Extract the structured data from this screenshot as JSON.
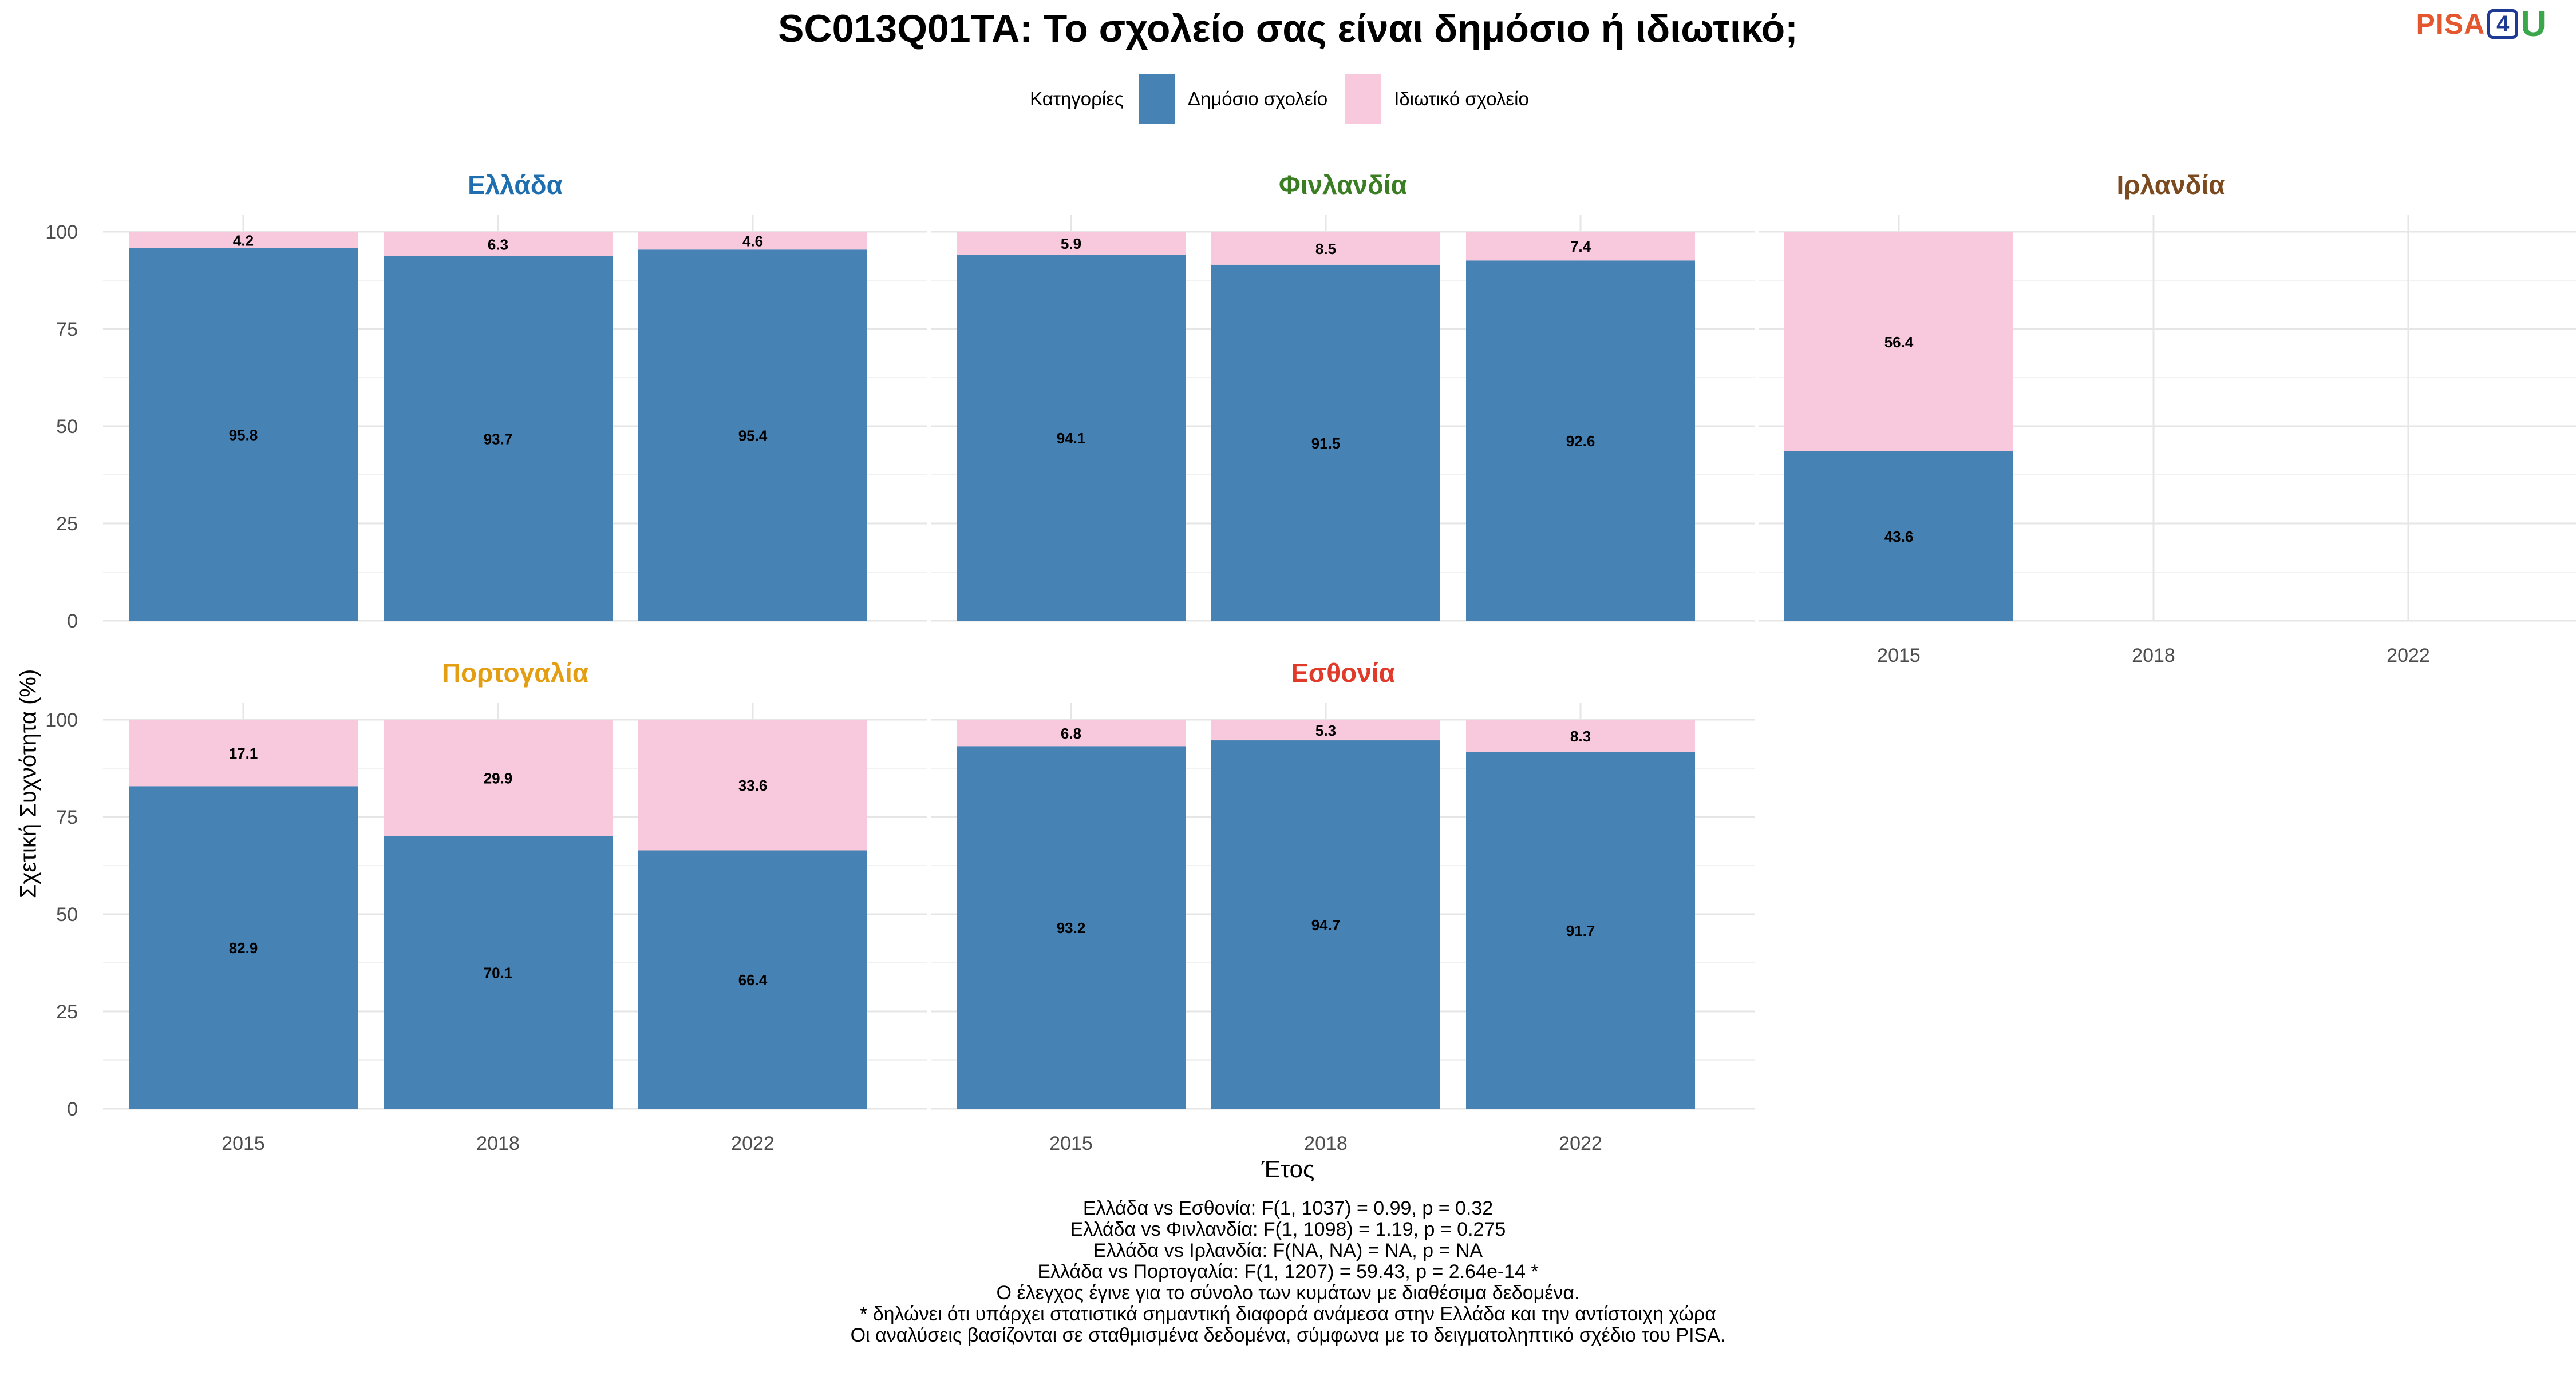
{
  "title": "SC013Q01TA: Το σχολείο σας είναι δημόσιο ή ιδιωτικό;",
  "logo": {
    "part1": "PISA",
    "part2": "4",
    "part3": "U"
  },
  "chart_data": {
    "type": "bar",
    "stacked": true,
    "legend": {
      "title": "Κατηγορίες",
      "position": "top",
      "entries": [
        {
          "name": "Δημόσιο σχολείο",
          "color": "#4682b4"
        },
        {
          "name": "Ιδιωτικό σχολείο",
          "color": "#f8c8dc"
        }
      ]
    },
    "xlabel": "Έτος",
    "ylabel": "Σχετική Συχνότητα (%)",
    "categories": [
      "2015",
      "2018",
      "2022"
    ],
    "ylim": [
      0,
      100
    ],
    "yticks": [
      "0",
      "25",
      "50",
      "75",
      "100"
    ],
    "grid": true,
    "panels": [
      {
        "name": "Ελλάδα",
        "color": "#1f6fb0",
        "series": [
          {
            "name": "Δημόσιο σχολείο",
            "values": [
              95.8,
              93.7,
              95.4
            ],
            "labels": [
              "95.8",
              "93.7",
              "95.4"
            ]
          },
          {
            "name": "Ιδιωτικό σχολείο",
            "values": [
              4.2,
              6.3,
              4.6
            ],
            "labels": [
              "4.2",
              "6.3",
              "4.6"
            ]
          }
        ]
      },
      {
        "name": "Φινλανδία",
        "color": "#3a7d22",
        "series": [
          {
            "name": "Δημόσιο σχολείο",
            "values": [
              94.1,
              91.5,
              92.6
            ],
            "labels": [
              "94.1",
              "91.5",
              "92.6"
            ]
          },
          {
            "name": "Ιδιωτικό σχολείο",
            "values": [
              5.9,
              8.5,
              7.4
            ],
            "labels": [
              "5.9",
              "8.5",
              "7.4"
            ]
          }
        ]
      },
      {
        "name": "Ιρλανδία",
        "color": "#7b4a1e",
        "series": [
          {
            "name": "Δημόσιο σχολείο",
            "values": [
              43.6,
              null,
              null
            ],
            "labels": [
              "43.6",
              "",
              ""
            ]
          },
          {
            "name": "Ιδιωτικό σχολείο",
            "values": [
              56.4,
              null,
              null
            ],
            "labels": [
              "56.4",
              "",
              ""
            ]
          }
        ]
      },
      {
        "name": "Πορτογαλία",
        "color": "#e39e14",
        "series": [
          {
            "name": "Δημόσιο σχολείο",
            "values": [
              82.9,
              70.1,
              66.4
            ],
            "labels": [
              "82.9",
              "70.1",
              "66.4"
            ]
          },
          {
            "name": "Ιδιωτικό σχολείο",
            "values": [
              17.1,
              29.9,
              33.6
            ],
            "labels": [
              "17.1",
              "29.9",
              "33.6"
            ]
          }
        ]
      },
      {
        "name": "Εσθονία",
        "color": "#e03a2a",
        "series": [
          {
            "name": "Δημόσιο σχολείο",
            "values": [
              93.2,
              94.7,
              91.7
            ],
            "labels": [
              "93.2",
              "94.7",
              "91.7"
            ]
          },
          {
            "name": "Ιδιωτικό σχολείο",
            "values": [
              6.8,
              5.3,
              8.3
            ],
            "labels": [
              "6.8",
              "5.3",
              "8.3"
            ]
          }
        ]
      }
    ]
  },
  "notes": [
    "Ελλάδα vs Εσθονία: F(1, 1037) = 0.99, p = 0.32",
    "Ελλάδα vs Φινλανδία: F(1, 1098) = 1.19, p = 0.275",
    "Ελλάδα vs Ιρλανδία: F(NA, NA) = NA, p = NA",
    "Ελλάδα vs Πορτογαλία: F(1, 1207) = 59.43, p = 2.64e-14 *",
    "Ο έλεγχος έγινε για το σύνολο των κυμάτων με διαθέσιμα δεδομένα.",
    "* δηλώνει ότι υπάρχει στατιστικά σημαντική διαφορά ανάμεσα στην Ελλάδα και την αντίστοιχη χώρα",
    "Οι αναλύσεις βασίζονται σε σταθμισμένα δεδομένα, σύμφωνα με το δειγματοληπτικό σχέδιο του PISA."
  ]
}
